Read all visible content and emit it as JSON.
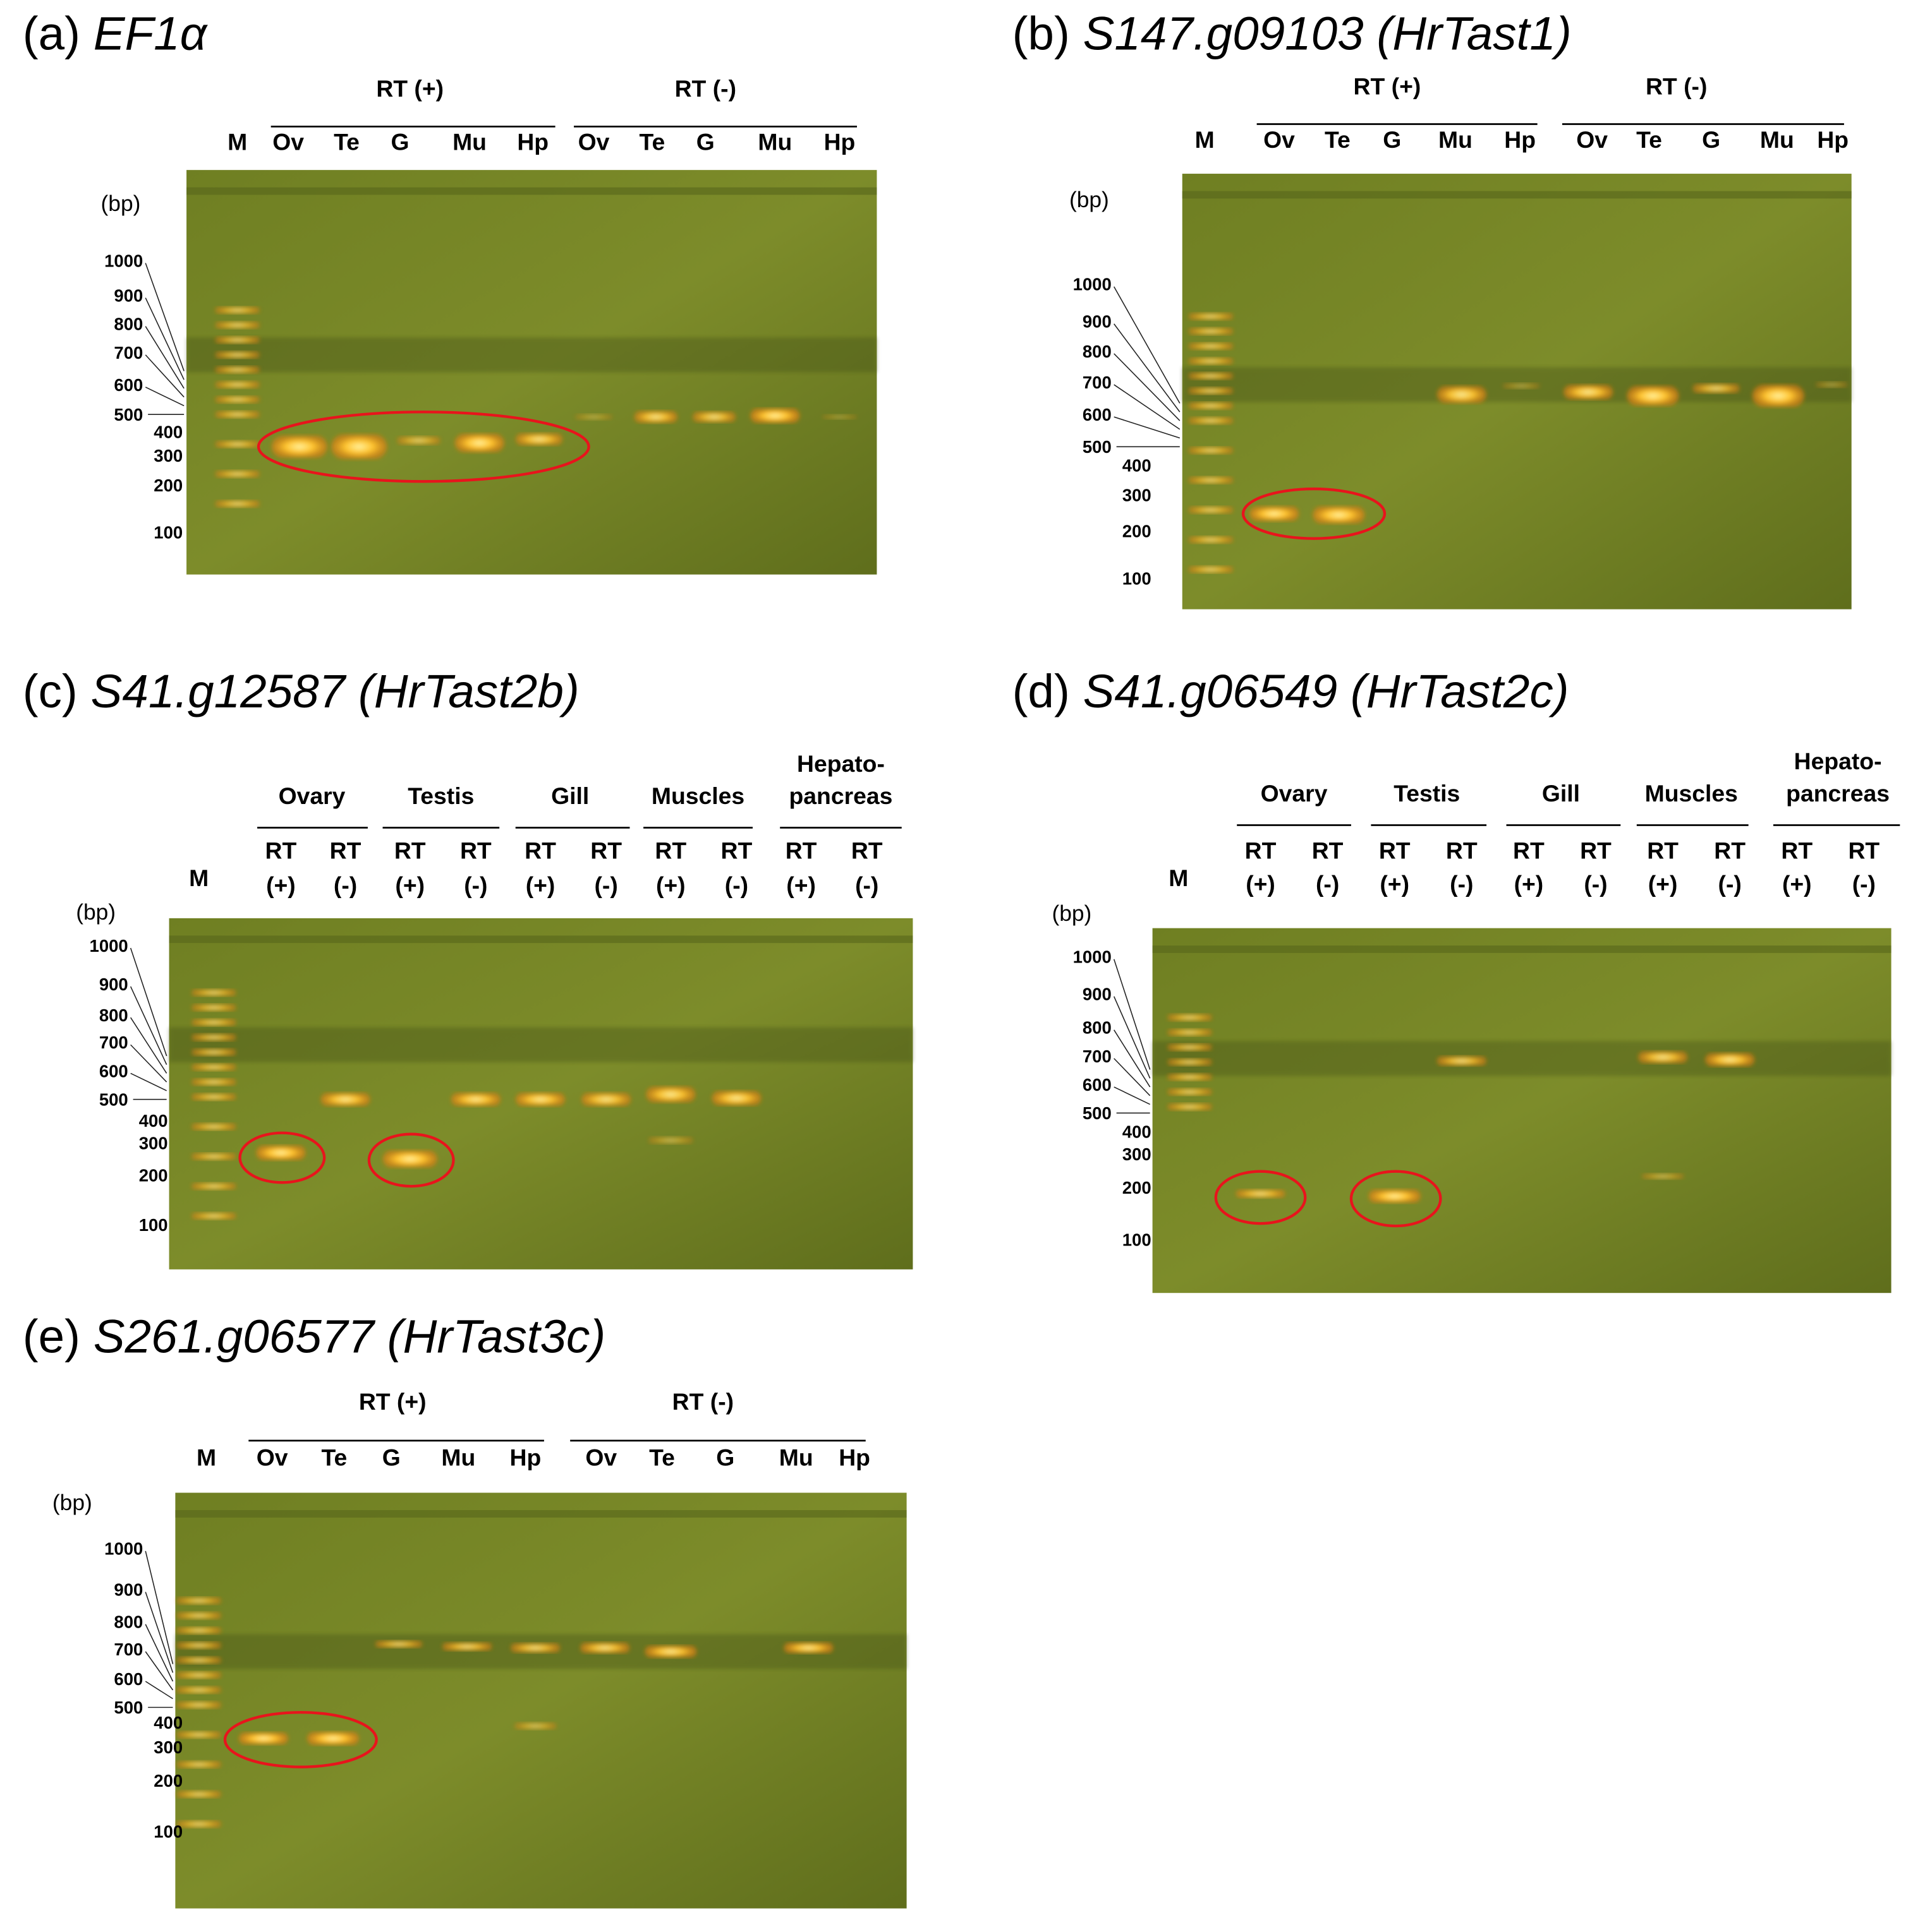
{
  "panels": [
    {
      "label": "(a)",
      "gene": "EF1α",
      "groups": [
        [
          "RT (+)"
        ],
        [
          "RT (-)"
        ]
      ],
      "marker": "M",
      "lanes": [
        [
          "Ov"
        ],
        [
          "Te"
        ],
        [
          "G"
        ],
        [
          "Mu"
        ],
        [
          "Hp"
        ],
        [
          "Ov"
        ],
        [
          "Te"
        ],
        [
          "G"
        ],
        [
          "Mu"
        ],
        [
          "Hp"
        ]
      ],
      "size_unit": "(bp)",
      "size_labels": [
        "1000",
        "900",
        "800",
        "700",
        "600",
        "500",
        "400",
        "300",
        "200",
        "100"
      ]
    },
    {
      "label": "(b)",
      "gene": "S147.g09103 (HrTast1)",
      "groups": [
        [
          "RT (+)"
        ],
        [
          "RT (-)"
        ]
      ],
      "marker": "M",
      "lanes": [
        [
          "Ov"
        ],
        [
          "Te"
        ],
        [
          "G"
        ],
        [
          "Mu"
        ],
        [
          "Hp"
        ],
        [
          "Ov"
        ],
        [
          "Te"
        ],
        [
          "G"
        ],
        [
          "Mu"
        ],
        [
          "Hp"
        ]
      ],
      "size_unit": "(bp)",
      "size_labels": [
        "1000",
        "900",
        "800",
        "700",
        "600",
        "500",
        "400",
        "300",
        "200",
        "100"
      ]
    },
    {
      "label": "(c)",
      "gene": "S41.g12587 (HrTast2b)",
      "groups": [
        [
          "Ovary"
        ],
        [
          "Testis"
        ],
        [
          "Gill"
        ],
        [
          "Muscles"
        ],
        [
          "Hepato-",
          "pancreas"
        ]
      ],
      "marker": "M",
      "lanes": [
        [
          "RT",
          "(+)"
        ],
        [
          "RT",
          "(-)"
        ],
        [
          "RT",
          "(+)"
        ],
        [
          "RT",
          "(-)"
        ],
        [
          "RT",
          "(+)"
        ],
        [
          "RT",
          "(-)"
        ],
        [
          "RT",
          "(+)"
        ],
        [
          "RT",
          "(-)"
        ],
        [
          "RT",
          "(+)"
        ],
        [
          "RT",
          "(-)"
        ]
      ],
      "size_unit": "(bp)",
      "size_labels": [
        "1000",
        "900",
        "800",
        "700",
        "600",
        "500",
        "400",
        "300",
        "200",
        "100"
      ]
    },
    {
      "label": "(d)",
      "gene": "S41.g06549 (HrTast2c)",
      "groups": [
        [
          "Ovary"
        ],
        [
          "Testis"
        ],
        [
          "Gill"
        ],
        [
          "Muscles"
        ],
        [
          "Hepato-",
          "pancreas"
        ]
      ],
      "marker": "M",
      "lanes": [
        [
          "RT",
          "(+)"
        ],
        [
          "RT",
          "(-)"
        ],
        [
          "RT",
          "(+)"
        ],
        [
          "RT",
          "(-)"
        ],
        [
          "RT",
          "(+)"
        ],
        [
          "RT",
          "(-)"
        ],
        [
          "RT",
          "(+)"
        ],
        [
          "RT",
          "(-)"
        ],
        [
          "RT",
          "(+)"
        ],
        [
          "RT",
          "(-)"
        ]
      ],
      "size_unit": "(bp)",
      "size_labels": [
        "1000",
        "900",
        "800",
        "700",
        "600",
        "500",
        "400",
        "300",
        "200",
        "100"
      ]
    },
    {
      "label": "(e)",
      "gene": "S261.g06577 (HrTast3c)",
      "groups": [
        [
          "RT (+)"
        ],
        [
          "RT (-)"
        ]
      ],
      "marker": "M",
      "lanes": [
        [
          "Ov"
        ],
        [
          "Te"
        ],
        [
          "G"
        ],
        [
          "Mu"
        ],
        [
          "Hp"
        ],
        [
          "Ov"
        ],
        [
          "Te"
        ],
        [
          "G"
        ],
        [
          "Mu"
        ],
        [
          "Hp"
        ]
      ],
      "size_unit": "(bp)",
      "size_labels": [
        "1000",
        "900",
        "800",
        "700",
        "600",
        "500",
        "400",
        "300",
        "200",
        "100"
      ]
    }
  ]
}
